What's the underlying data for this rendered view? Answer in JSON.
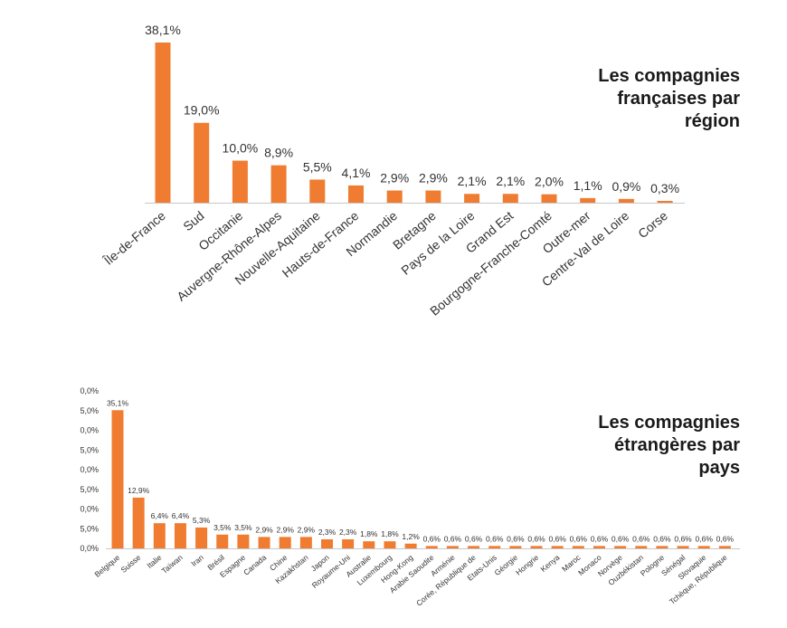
{
  "colors": {
    "bar": "#f07c31",
    "axis": "#c8c8c8",
    "text": "#333333",
    "heading": "#1a1a1a"
  },
  "chart_data": [
    {
      "type": "bar",
      "title": "Les compagnies françaises par région",
      "xlabel": "",
      "ylabel": "",
      "grid": false,
      "legend": "none",
      "ylim": [
        0,
        38.1
      ],
      "categories": [
        "Île-de-France",
        "Sud",
        "Occitanie",
        "Auvergne-Rhône-Alpes",
        "Nouvelle-Aquitaine",
        "Hauts-de-France",
        "Normandie",
        "Bretagne",
        "Pays de la Loire",
        "Grand Est",
        "Bourgogne-Franche-Comté",
        "Outre-mer",
        "Centre-Val de Loire",
        "Corse"
      ],
      "values": [
        38.1,
        19.0,
        10.0,
        8.9,
        5.5,
        4.1,
        2.9,
        2.9,
        2.1,
        2.1,
        2.0,
        1.1,
        0.9,
        0.3
      ],
      "value_labels": [
        "38,1%",
        "19,0%",
        "10,0%",
        "8,9%",
        "5,5%",
        "4,1%",
        "2,9%",
        "2,9%",
        "2,1%",
        "2,1%",
        "2,0%",
        "1,1%",
        "0,9%",
        "0,3%"
      ]
    },
    {
      "type": "bar",
      "title": "Les compagnies étrangères par pays",
      "xlabel": "",
      "ylabel": "",
      "grid": false,
      "legend": "none",
      "ylim": [
        0,
        40
      ],
      "y_tick_labels": [
        "0,0%",
        "5,0%",
        "0,0%",
        "5,0%",
        "0,0%",
        "5,0%",
        "0,0%",
        "5,0%",
        "0,0%"
      ],
      "categories": [
        "Belgique",
        "Suisse",
        "Italie",
        "Taïwan",
        "Iran",
        "Brésil",
        "Espagne",
        "Canada",
        "Chine",
        "Kazakhstan",
        "Japon",
        "Royaume-Uni",
        "Australie",
        "Luxembourg",
        "Hong-Kong",
        "Arabie Saoudite",
        "Arménie",
        "Corée, République de",
        "Etats-Unis",
        "Géorgie",
        "Hongrie",
        "Kenya",
        "Maroc",
        "Monaco",
        "Norvège",
        "Ouzbékistan",
        "Pologne",
        "Sénégal",
        "Slovaquie",
        "Tchèque, République"
      ],
      "values": [
        35.1,
        12.9,
        6.4,
        6.4,
        5.3,
        3.5,
        3.5,
        2.9,
        2.9,
        2.9,
        2.3,
        2.3,
        1.8,
        1.8,
        1.2,
        0.6,
        0.6,
        0.6,
        0.6,
        0.6,
        0.6,
        0.6,
        0.6,
        0.6,
        0.6,
        0.6,
        0.6,
        0.6,
        0.6,
        0.6
      ],
      "value_labels": [
        "35,1%",
        "12,9%",
        "6,4%",
        "6,4%",
        "5,3%",
        "3,5%",
        "3,5%",
        "2,9%",
        "2,9%",
        "2,9%",
        "2,3%",
        "2,3%",
        "1,8%",
        "1,8%",
        "1,2%",
        "0,6%",
        "0,6%",
        "0,6%",
        "0,6%",
        "0,6%",
        "0,6%",
        "0,6%",
        "0,6%",
        "0,6%",
        "0,6%",
        "0,6%",
        "0,6%",
        "0,6%",
        "0,6%",
        "0,6%"
      ]
    }
  ],
  "headings": {
    "regions": "Les compagnies\nfrançaises par\nrégion",
    "countries": "Les compagnies\nétrangères par\npays"
  }
}
